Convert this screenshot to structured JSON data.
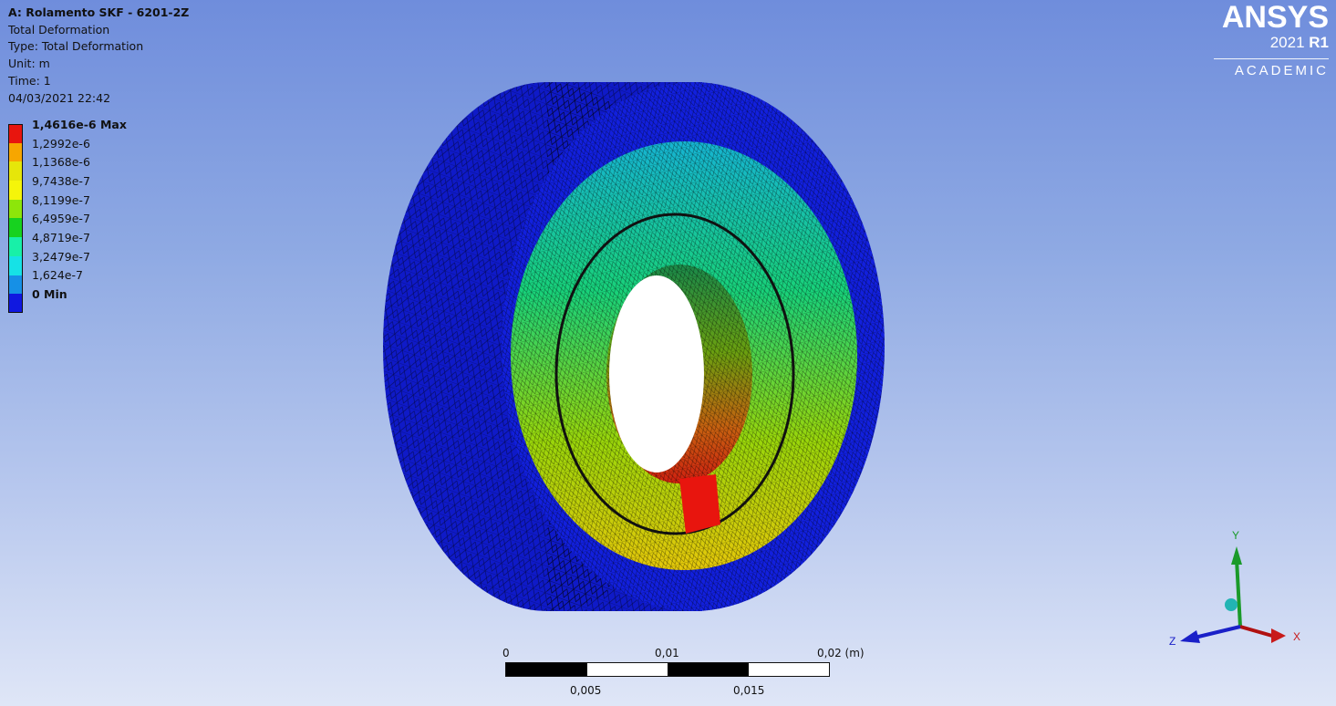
{
  "info": {
    "title": "A: Rolamento SKF - 6201-2Z",
    "result": "Total Deformation",
    "type": "Type: Total Deformation",
    "unit": "Unit: m",
    "time": "Time: 1",
    "date": "04/03/2021 22:42"
  },
  "legend": {
    "items": [
      {
        "label": "1,4616e-6 Max",
        "color": "#e8150e",
        "bold": true
      },
      {
        "label": "1,2992e-6",
        "color": "#f7a600",
        "bold": false
      },
      {
        "label": "1,1368e-6",
        "color": "#e6e60a",
        "bold": false
      },
      {
        "label": "9,7438e-7",
        "color": "#f5f50a",
        "bold": false
      },
      {
        "label": "8,1199e-7",
        "color": "#8de60a",
        "bold": false
      },
      {
        "label": "6,4959e-7",
        "color": "#17d21f",
        "bold": false
      },
      {
        "label": "4,8719e-7",
        "color": "#18f0a8",
        "bold": false
      },
      {
        "label": "3,2479e-7",
        "color": "#16e2e6",
        "bold": false
      },
      {
        "label": "1,624e-7",
        "color": "#1690e6",
        "bold": false
      },
      {
        "label": "0 Min",
        "color": "#1018e0",
        "bold": true
      }
    ]
  },
  "logo": {
    "brand": "ANSYS",
    "year": "2021",
    "release": "R1",
    "edition": "ACADEMIC"
  },
  "scale_bar": {
    "top_labels": [
      "0",
      "0,01",
      "0,02 (m)"
    ],
    "bottom_labels": [
      "0,005",
      "0,015"
    ]
  },
  "triad": {
    "x": "X",
    "y": "Y",
    "z": "Z"
  }
}
